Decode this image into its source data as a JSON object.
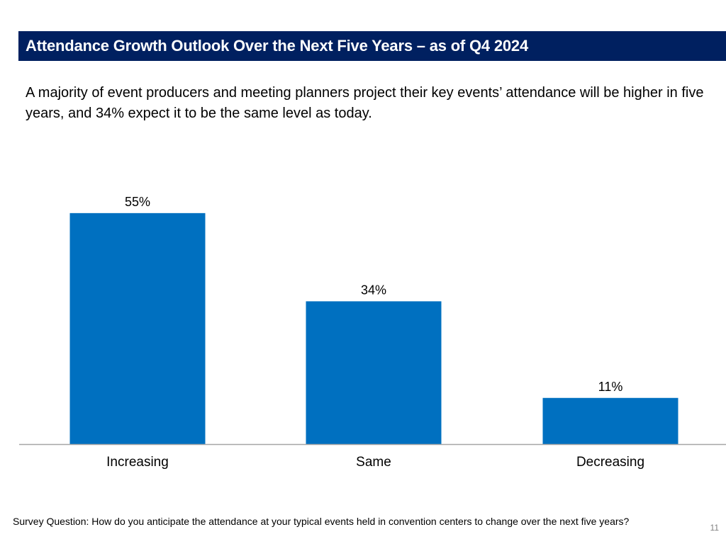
{
  "header": {
    "title": "Attendance Growth Outlook Over the Next Five Years – as of Q4 2024"
  },
  "summary": "A majority of event producers and meeting planners project their key events’ attendance will be higher in five years, and 34% expect it to be the same level as today.",
  "footer": {
    "survey_question": "Survey Question: How do you anticipate the attendance at your typical events held in convention centers to change over the next five years?",
    "page_number": "11"
  },
  "colors": {
    "title_bar": "#002060",
    "bar": "#0070C0",
    "axis": "#A6A6A6"
  },
  "chart_data": {
    "type": "bar",
    "title": "",
    "xlabel": "",
    "ylabel": "",
    "categories": [
      "Increasing",
      "Same",
      "Decreasing"
    ],
    "values": [
      55,
      34,
      11
    ],
    "value_labels": [
      "55%",
      "34%",
      "11%"
    ],
    "ylim": [
      0,
      60
    ],
    "grid": false,
    "legend": "none"
  }
}
